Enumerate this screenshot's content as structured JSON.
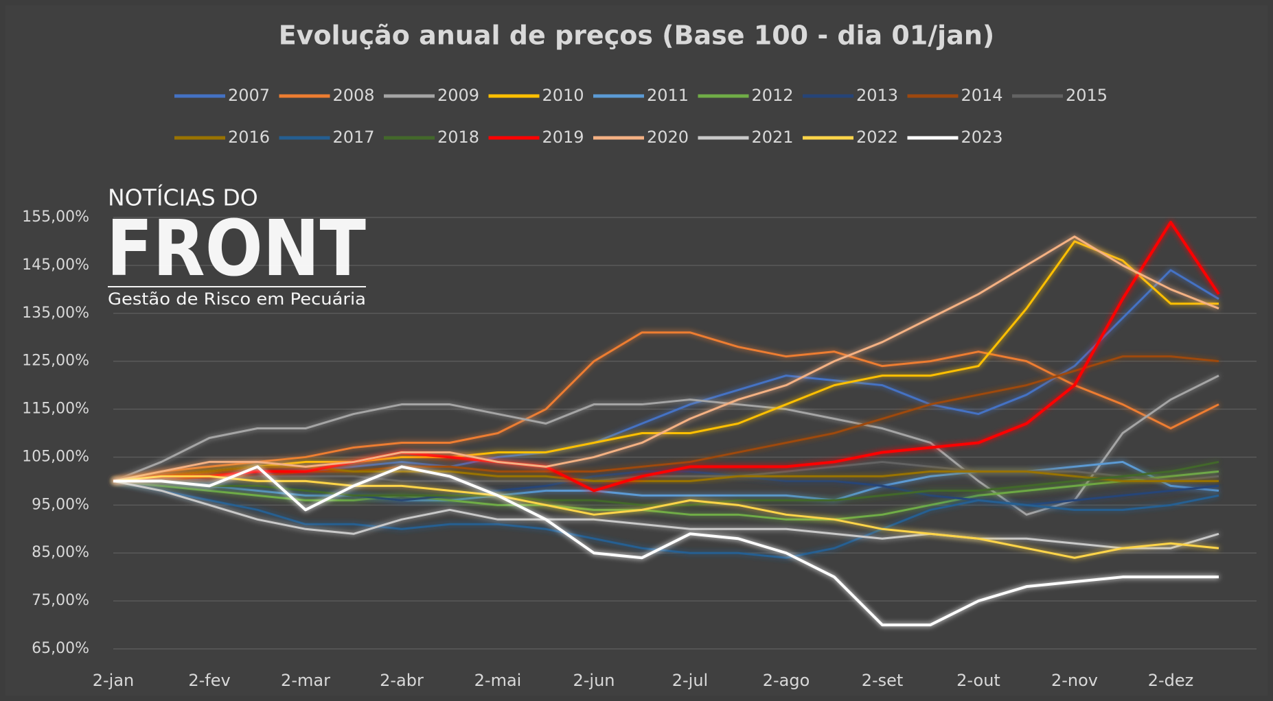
{
  "chart_data": {
    "type": "line",
    "title": "Evolução anual de preços (Base 100 - dia 01/jan)",
    "annotations": [
      "NOTÍCIAS DO",
      "FRONT",
      "Gestão de Risco em Pecuária"
    ],
    "categories": [
      "2-jan",
      null,
      "2-fev",
      null,
      "2-mar",
      null,
      "2-abr",
      null,
      "2-mai",
      null,
      "2-jun",
      null,
      "2-jul",
      null,
      "2-ago",
      null,
      "2-set",
      null,
      "2-out",
      null,
      "2-nov",
      null,
      "2-dez",
      null
    ],
    "ylim": [
      63,
      158
    ],
    "yticks": [
      {
        "value": 65,
        "label": "65,00%"
      },
      {
        "value": 75,
        "label": "75,00%"
      },
      {
        "value": 85,
        "label": "85,00%"
      },
      {
        "value": 95,
        "label": "95,00%"
      },
      {
        "value": 105,
        "label": "105,00%"
      },
      {
        "value": 115,
        "label": "115,00%"
      },
      {
        "value": 125,
        "label": "125,00%"
      },
      {
        "value": 135,
        "label": "135,00%"
      },
      {
        "value": 145,
        "label": "145,00%"
      },
      {
        "value": 155,
        "label": "155,00%"
      }
    ],
    "grid": true,
    "series": [
      {
        "name": "2007",
        "color": "#4472c4",
        "values": [
          100,
          101,
          100,
          101,
          102,
          103,
          104,
          103,
          105,
          106,
          108,
          112,
          116,
          119,
          122,
          121,
          120,
          116,
          114,
          118,
          124,
          134,
          144,
          138
        ]
      },
      {
        "name": "2008",
        "color": "#ed7d31",
        "values": [
          100,
          102,
          103,
          104,
          105,
          107,
          108,
          108,
          110,
          115,
          125,
          131,
          131,
          128,
          126,
          127,
          124,
          125,
          127,
          125,
          120,
          116,
          111,
          116
        ]
      },
      {
        "name": "2009",
        "color": "#a5a5a5",
        "values": [
          100,
          104,
          109,
          111,
          111,
          114,
          116,
          116,
          114,
          112,
          116,
          116,
          117,
          116,
          115,
          113,
          111,
          108,
          100,
          93,
          96,
          110,
          117,
          122
        ]
      },
      {
        "name": "2010",
        "color": "#ffc000",
        "values": [
          100,
          101,
          102,
          103,
          104,
          104,
          105,
          105,
          106,
          106,
          108,
          110,
          110,
          112,
          116,
          120,
          122,
          122,
          124,
          136,
          150,
          146,
          137,
          137
        ]
      },
      {
        "name": "2011",
        "color": "#5b9bd5",
        "values": [
          100,
          100,
          99,
          98,
          97,
          97,
          96,
          96,
          97,
          98,
          98,
          97,
          97,
          97,
          97,
          96,
          99,
          101,
          102,
          102,
          103,
          104,
          99,
          98
        ]
      },
      {
        "name": "2012",
        "color": "#70ad47",
        "values": [
          100,
          99,
          98,
          97,
          96,
          96,
          97,
          96,
          95,
          95,
          94,
          94,
          93,
          93,
          92,
          92,
          93,
          95,
          97,
          98,
          99,
          100,
          101,
          102
        ]
      },
      {
        "name": "2013",
        "color": "#264478",
        "values": [
          100,
          100,
          99,
          99,
          98,
          97,
          96,
          97,
          98,
          99,
          101,
          102,
          102,
          101,
          100,
          100,
          99,
          97,
          96,
          95,
          96,
          97,
          98,
          99
        ]
      },
      {
        "name": "2014",
        "color": "#9e480e",
        "values": [
          100,
          100,
          101,
          101,
          102,
          102,
          103,
          103,
          102,
          102,
          102,
          103,
          104,
          106,
          108,
          110,
          113,
          116,
          118,
          120,
          123,
          126,
          126,
          125
        ]
      },
      {
        "name": "2015",
        "color": "#636363",
        "values": [
          100,
          100,
          100,
          101,
          101,
          101,
          100,
          100,
          100,
          100,
          100,
          101,
          101,
          101,
          102,
          103,
          104,
          103,
          102,
          102,
          102,
          101,
          100,
          101
        ]
      },
      {
        "name": "2016",
        "color": "#997300",
        "values": [
          100,
          101,
          102,
          103,
          103,
          102,
          102,
          102,
          101,
          101,
          100,
          100,
          100,
          101,
          101,
          101,
          101,
          102,
          102,
          102,
          101,
          100,
          100,
          100
        ]
      },
      {
        "name": "2017",
        "color": "#255e91",
        "values": [
          100,
          98,
          96,
          94,
          91,
          91,
          90,
          91,
          91,
          90,
          88,
          86,
          85,
          85,
          84,
          86,
          90,
          94,
          96,
          95,
          94,
          94,
          95,
          97
        ]
      },
      {
        "name": "2018",
        "color": "#43682b",
        "values": [
          100,
          100,
          99,
          99,
          98,
          97,
          97,
          97,
          97,
          96,
          96,
          95,
          95,
          96,
          96,
          96,
          97,
          98,
          98,
          99,
          100,
          101,
          102,
          104
        ]
      },
      {
        "name": "2019",
        "color": "#ff0000",
        "values": [
          100,
          101,
          101,
          102,
          102,
          104,
          106,
          105,
          104,
          103,
          98,
          101,
          103,
          103,
          103,
          104,
          106,
          107,
          108,
          112,
          120,
          138,
          154,
          139
        ]
      },
      {
        "name": "2020",
        "color": "#f4b183",
        "values": [
          100,
          102,
          104,
          104,
          103,
          104,
          106,
          106,
          104,
          103,
          105,
          108,
          113,
          117,
          120,
          125,
          129,
          134,
          139,
          145,
          151,
          145,
          140,
          136
        ]
      },
      {
        "name": "2021",
        "color": "#c9c9c9",
        "values": [
          100,
          98,
          95,
          92,
          90,
          89,
          92,
          94,
          92,
          92,
          92,
          91,
          90,
          90,
          90,
          89,
          88,
          89,
          88,
          88,
          87,
          86,
          86,
          89
        ]
      },
      {
        "name": "2022",
        "color": "#ffd54a",
        "values": [
          100,
          101,
          101,
          100,
          100,
          99,
          99,
          98,
          97,
          95,
          93,
          94,
          96,
          95,
          93,
          92,
          90,
          89,
          88,
          86,
          84,
          86,
          87,
          86
        ]
      },
      {
        "name": "2023",
        "color": "#ffffff",
        "values": [
          100,
          100,
          99,
          103,
          94,
          99,
          103,
          101,
          97,
          92,
          85,
          84,
          89,
          88,
          85,
          80,
          70,
          70,
          75,
          78,
          79,
          80,
          80,
          80
        ]
      }
    ]
  }
}
